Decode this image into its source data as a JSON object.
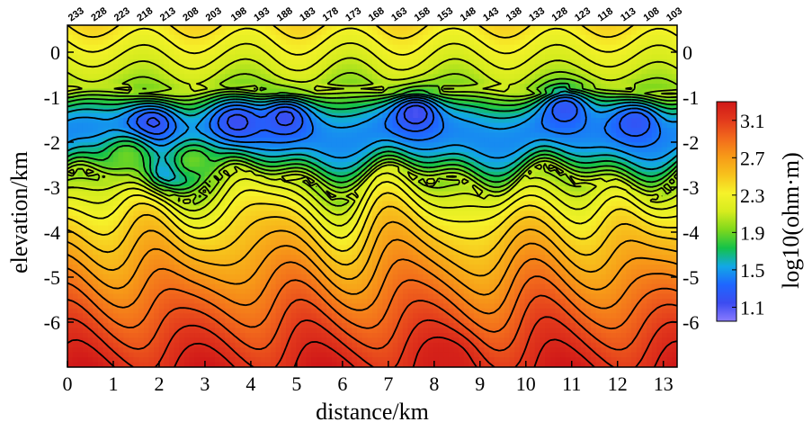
{
  "chart_data": {
    "type": "heatmap",
    "title": "",
    "xlabel": "distance/km",
    "ylabel": "elevation/km",
    "xlim": [
      0,
      13.3
    ],
    "ylim": [
      -7,
      0.6
    ],
    "x_ticks": [
      "0",
      "1",
      "2",
      "3",
      "4",
      "5",
      "6",
      "7",
      "8",
      "9",
      "10",
      "11",
      "12",
      "13"
    ],
    "y_ticks_left": [
      "0",
      "-1",
      "-2",
      "-3",
      "-4",
      "-5",
      "-6"
    ],
    "y_ticks_right": [
      "0",
      "-1",
      "-2",
      "-3",
      "-4",
      "-5",
      "-6"
    ],
    "y_tick_values": [
      0,
      -1,
      -2,
      -3,
      -4,
      -5,
      -6
    ],
    "colorbar": {
      "label": "log10(ohm·m)",
      "ticks": [
        "3.1",
        "2.7",
        "2.3",
        "1.9",
        "1.5",
        "1.1"
      ],
      "tick_values": [
        3.1,
        2.7,
        2.3,
        1.9,
        1.5,
        1.1
      ],
      "range": [
        0.95,
        3.3
      ],
      "colors": [
        "#8a7bff",
        "#3c4cf0",
        "#1e66ff",
        "#12a8e6",
        "#14c24a",
        "#7fd81c",
        "#d6ec1e",
        "#f6f22a",
        "#f7c21c",
        "#f79a18",
        "#f26a1c",
        "#e2391c",
        "#d01818"
      ]
    },
    "stations": {
      "labels": [
        "233",
        "228",
        "223",
        "218",
        "213",
        "208",
        "203",
        "198",
        "193",
        "188",
        "183",
        "178",
        "173",
        "168",
        "163",
        "158",
        "153",
        "148",
        "143",
        "138",
        "133",
        "128",
        "123",
        "118",
        "113",
        "108",
        "103"
      ],
      "x": [
        0.0,
        0.5,
        1.0,
        1.5,
        2.0,
        2.5,
        3.0,
        3.55,
        4.05,
        4.55,
        5.05,
        5.55,
        6.05,
        6.55,
        7.05,
        7.55,
        8.05,
        8.55,
        9.05,
        9.55,
        10.05,
        10.55,
        11.05,
        11.55,
        12.05,
        12.55,
        13.05
      ]
    },
    "resistivity_model": {
      "description_units": "log10(ohm·m)",
      "near_surface_value": 2.4,
      "shallow_layer_value": 2.0,
      "conductive_layer_top_km": -0.8,
      "conductive_layer_bottom_km": -2.9,
      "conductive_layer_min_value": 1.1,
      "deep_value": 3.2,
      "anomalies": [
        {
          "x": 1.85,
          "y": -1.6,
          "value": 1.15
        },
        {
          "x": 3.7,
          "y": -1.55,
          "value": 1.15
        },
        {
          "x": 4.75,
          "y": -1.45,
          "value": 1.15
        },
        {
          "x": 7.6,
          "y": -1.35,
          "value": 1.1
        },
        {
          "x": 10.85,
          "y": -1.25,
          "value": 1.2
        },
        {
          "x": 12.4,
          "y": -1.55,
          "value": 1.2
        },
        {
          "x": 2.2,
          "y": -2.6,
          "value": 1.4
        },
        {
          "x": 1.3,
          "y": -2.3,
          "value": 1.9
        },
        {
          "x": 2.75,
          "y": -2.4,
          "value": 1.9
        },
        {
          "x": 8.3,
          "y": -6.8,
          "value": 3.25
        }
      ]
    }
  }
}
